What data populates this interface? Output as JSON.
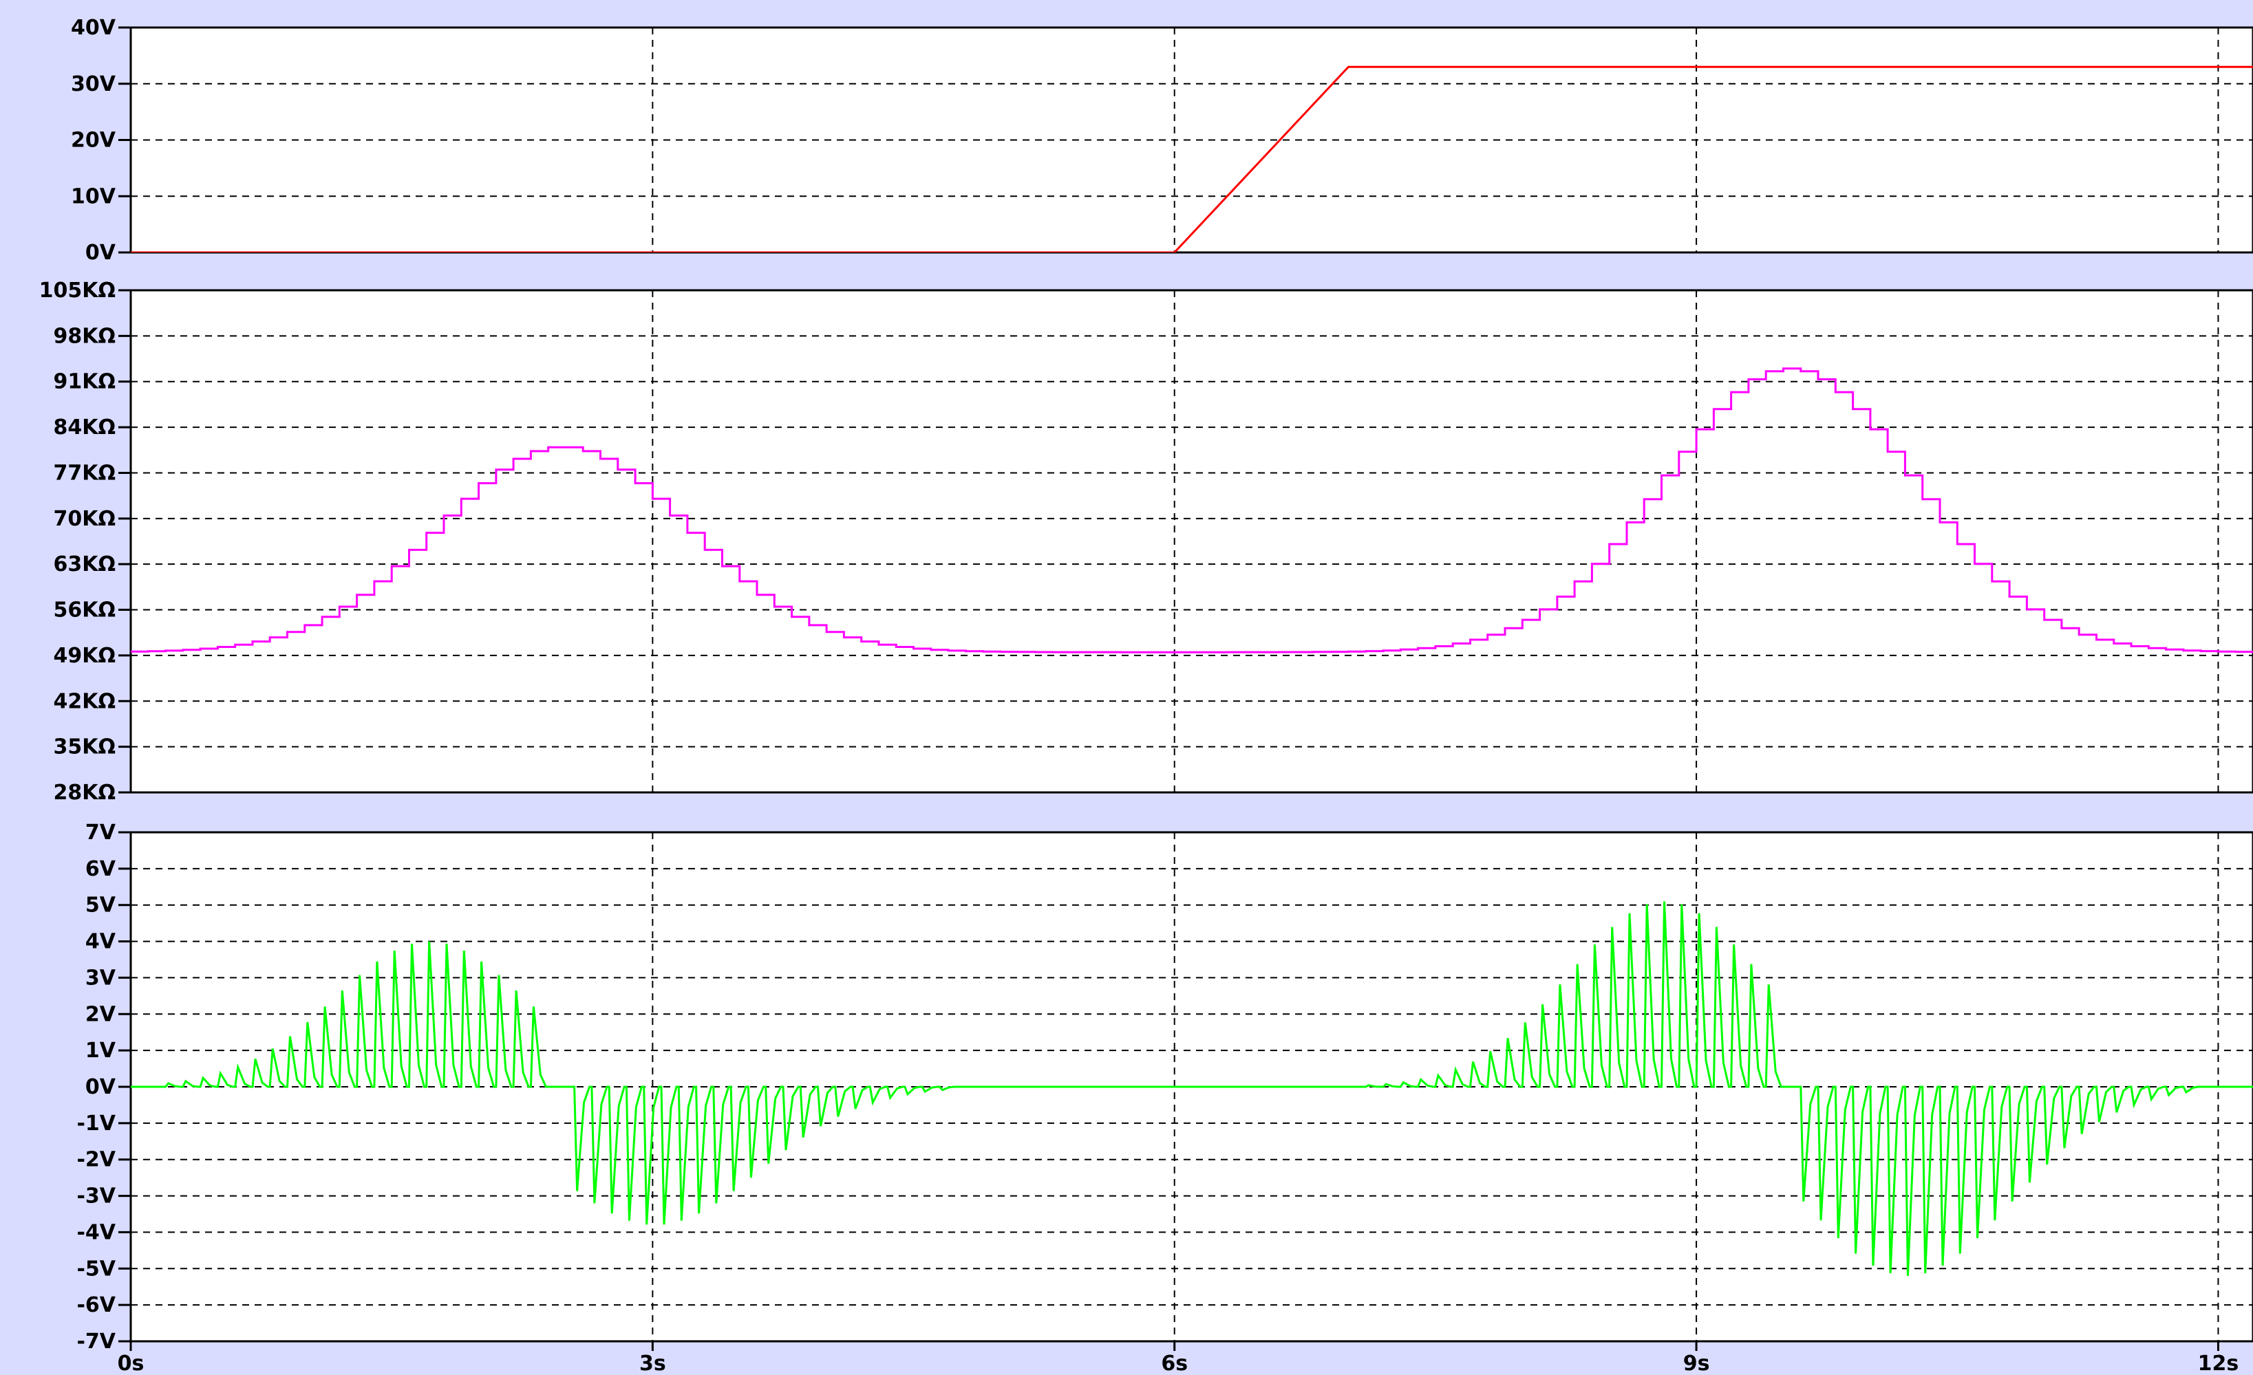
{
  "colors": {
    "window_background": "#d9dcff",
    "plot_background": "#ffffff",
    "grid": "#000000",
    "trace_voltage": "#ff0000",
    "trace_resistance": "#ff00ff",
    "trace_output": "#00ff00"
  },
  "chart_data": [
    {
      "type": "line",
      "panel": "top",
      "ylim": [
        0,
        40
      ],
      "yticks": [
        "40V",
        "30V",
        "20V",
        "10V",
        "0V"
      ],
      "ytick_values": [
        40,
        30,
        20,
        10,
        0
      ],
      "xlim": [
        0,
        12.2
      ],
      "grid": true,
      "series": [
        {
          "color": "#ff0000",
          "x": [
            0,
            6.0,
            7.0,
            12.2
          ],
          "y": [
            0,
            0,
            33,
            33
          ]
        }
      ]
    },
    {
      "type": "line",
      "panel": "middle",
      "ylim": [
        28,
        105
      ],
      "yticks": [
        "105KΩ",
        "98KΩ",
        "91KΩ",
        "84KΩ",
        "77KΩ",
        "70KΩ",
        "63KΩ",
        "56KΩ",
        "49KΩ",
        "42KΩ",
        "35KΩ",
        "28KΩ"
      ],
      "ytick_values": [
        105,
        98,
        91,
        84,
        77,
        70,
        63,
        56,
        49,
        42,
        35,
        28
      ],
      "xlim": [
        0,
        12.2
      ],
      "grid": true,
      "series": [
        {
          "color": "#ff00ff",
          "stepped": true,
          "baseline": 49.5,
          "pulses": [
            {
              "center": 2.45,
              "width": 0.72,
              "peak": 81
            },
            {
              "center": 9.5,
              "width": 0.72,
              "peak": 93
            }
          ],
          "step": 0.1
        }
      ]
    },
    {
      "type": "line",
      "panel": "bottom",
      "ylim": [
        -7,
        7
      ],
      "yticks": [
        "7V",
        "6V",
        "5V",
        "4V",
        "3V",
        "2V",
        "1V",
        "0V",
        "-1V",
        "-2V",
        "-3V",
        "-4V",
        "-5V",
        "-6V",
        "-7V"
      ],
      "ytick_values": [
        7,
        6,
        5,
        4,
        3,
        2,
        1,
        0,
        -1,
        -2,
        -3,
        -4,
        -5,
        -6,
        -7
      ],
      "xlim": [
        0,
        12.2
      ],
      "grid": true,
      "series": [
        {
          "color": "#00ff00",
          "spike_interval": 0.1,
          "bursts": [
            {
              "start": 0.2,
              "end": 2.3,
              "sign": 1,
              "peak": 4.0,
              "peak_at": 1.7,
              "spread": 0.55
            },
            {
              "start": 2.55,
              "end": 4.7,
              "sign": -1,
              "peak": 3.8,
              "peak_at": 3.0,
              "spread": 0.6
            },
            {
              "start": 7.1,
              "end": 9.4,
              "sign": 1,
              "peak": 5.1,
              "peak_at": 8.8,
              "spread": 0.55
            },
            {
              "start": 9.6,
              "end": 11.8,
              "sign": -1,
              "peak": 5.2,
              "peak_at": 10.2,
              "spread": 0.6
            }
          ]
        }
      ]
    }
  ],
  "x_axis": {
    "ticks": [
      "0s",
      "3s",
      "6s",
      "9s",
      "12s"
    ],
    "tick_values": [
      0,
      3,
      6,
      9,
      12
    ]
  }
}
